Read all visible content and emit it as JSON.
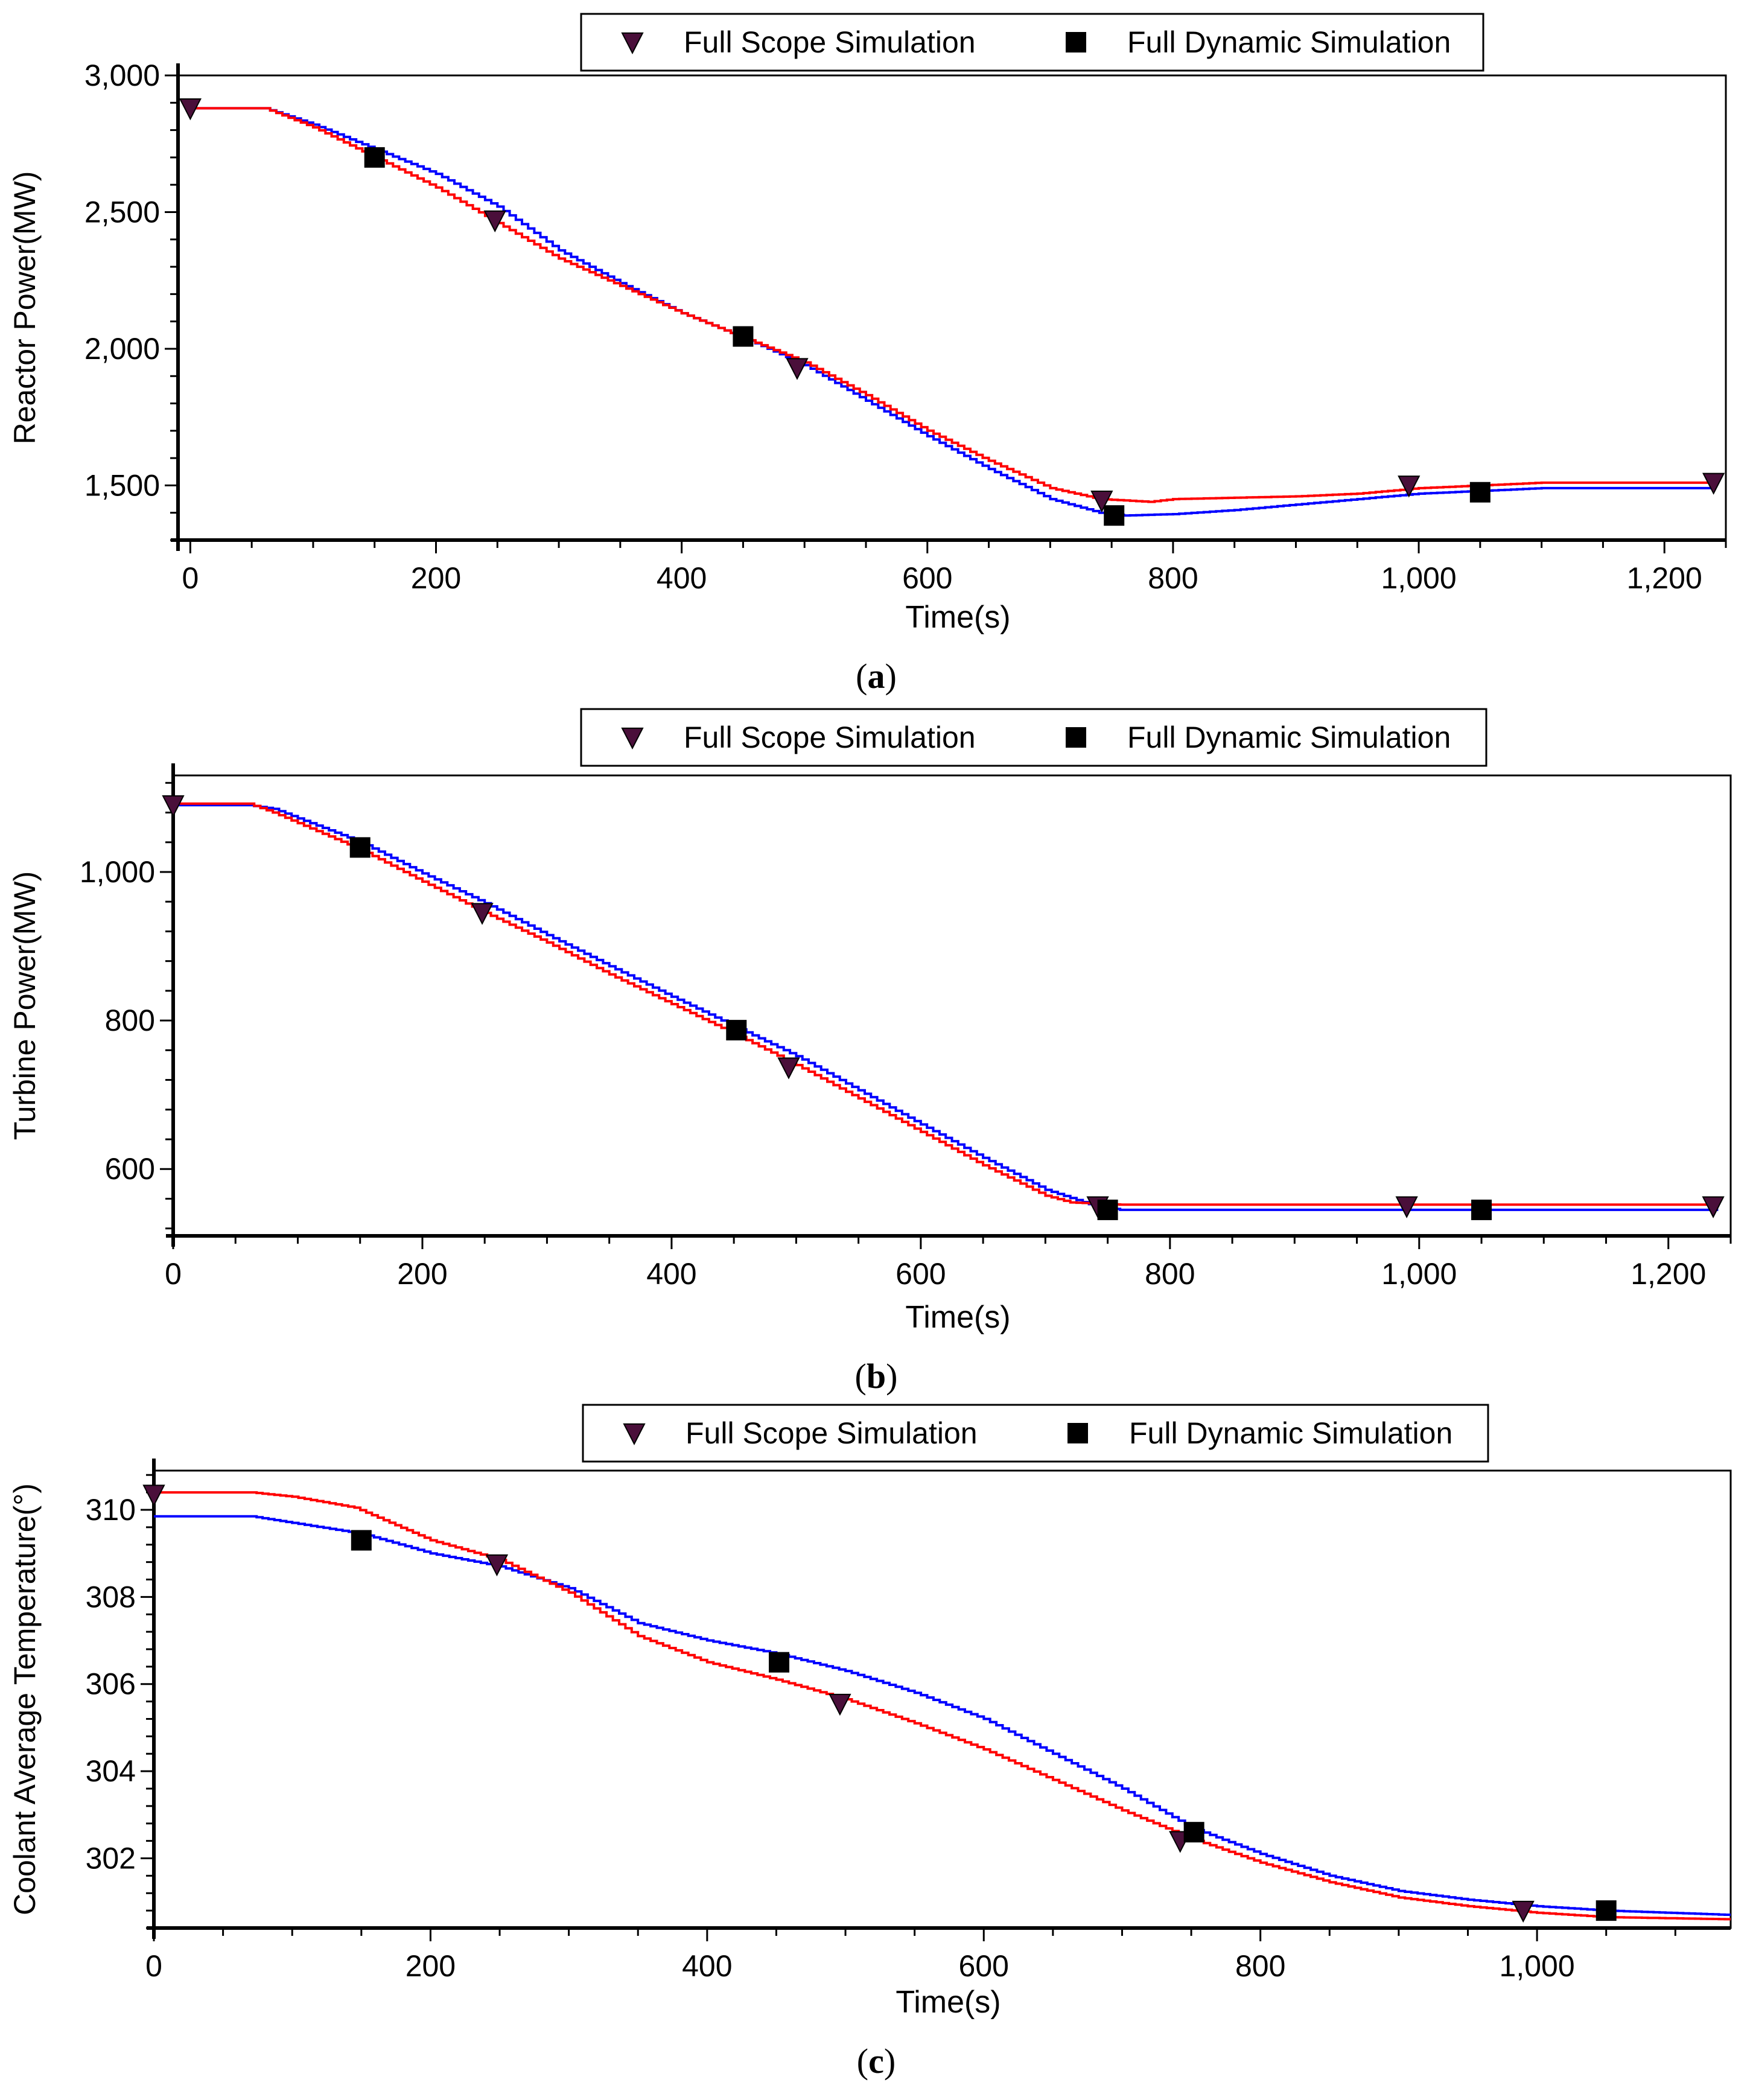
{
  "colors": {
    "full_scope": "#0000ff",
    "full_dynamic": "#ff0000",
    "marker": "#4a0f3a",
    "marker_square": "#000000"
  },
  "legend": {
    "full_scope": "Full Scope Simulation",
    "full_dynamic": "Full Dynamic Simulation"
  },
  "chart_data": [
    {
      "type": "line",
      "caption_letter": "a",
      "xlabel": "Time(s)",
      "ylabel": "Reactor Power(MW)",
      "xlim": [
        -10,
        1250
      ],
      "ylim": [
        1300,
        3000
      ],
      "x_ticks": [
        0,
        200,
        400,
        600,
        800,
        1000,
        1200
      ],
      "x_tick_labels": [
        "0",
        "200",
        "400",
        "600",
        "800",
        "1,000",
        "1,200"
      ],
      "y_ticks": [
        1500,
        2000,
        2500,
        3000
      ],
      "y_tick_labels": [
        "1,500",
        "2,000",
        "2,500",
        "3,000"
      ],
      "series": [
        {
          "name": "Full Scope Simulation",
          "color_key": "full_scope",
          "x": [
            0,
            60,
            100,
            150,
            200,
            250,
            300,
            350,
            400,
            450,
            500,
            550,
            600,
            650,
            700,
            740,
            760,
            800,
            850,
            900,
            1000,
            1100,
            1200,
            1240
          ],
          "y": [
            2880,
            2880,
            2820,
            2730,
            2640,
            2520,
            2360,
            2240,
            2130,
            2040,
            1940,
            1810,
            1680,
            1560,
            1450,
            1400,
            1390,
            1395,
            1410,
            1430,
            1470,
            1490,
            1490,
            1490
          ]
        },
        {
          "name": "Full Dynamic Simulation",
          "color_key": "full_dynamic",
          "x": [
            0,
            60,
            100,
            150,
            200,
            250,
            300,
            350,
            400,
            450,
            500,
            550,
            600,
            650,
            700,
            740,
            780,
            800,
            900,
            950,
            1000,
            1050,
            1100,
            1200,
            1240
          ],
          "y": [
            2880,
            2880,
            2810,
            2700,
            2590,
            2460,
            2330,
            2230,
            2130,
            2040,
            1950,
            1830,
            1700,
            1590,
            1490,
            1450,
            1440,
            1450,
            1460,
            1470,
            1490,
            1500,
            1510,
            1510,
            1510
          ]
        }
      ],
      "markers": {
        "full_scope": [
          [
            0,
            2880
          ],
          [
            248,
            2470
          ],
          [
            494,
            1930
          ],
          [
            742,
            1445
          ],
          [
            992,
            1500
          ],
          [
            1240,
            1510
          ]
        ],
        "full_dynamic": [
          [
            150,
            2700
          ],
          [
            450,
            2045
          ],
          [
            752,
            1390
          ],
          [
            1050,
            1475
          ]
        ]
      }
    },
    {
      "type": "line",
      "caption_letter": "b",
      "xlabel": "Time(s)",
      "ylabel": "Turbine Power(MW)",
      "xlim": [
        0,
        1250
      ],
      "ylim": [
        510,
        1130
      ],
      "x_ticks": [
        0,
        200,
        400,
        600,
        800,
        1000,
        1200
      ],
      "x_tick_labels": [
        "0",
        "200",
        "400",
        "600",
        "800",
        "1,000",
        "1,200"
      ],
      "y_ticks": [
        600,
        800,
        1000
      ],
      "y_tick_labels": [
        "600",
        "800",
        "1,000"
      ],
      "series": [
        {
          "name": "Full Scope Simulation",
          "color_key": "full_scope",
          "x": [
            0,
            60,
            80,
            150,
            200,
            250,
            300,
            350,
            400,
            450,
            500,
            550,
            600,
            650,
            700,
            740,
            760,
            800,
            1000,
            1240
          ],
          "y": [
            1090,
            1090,
            1085,
            1040,
            998,
            958,
            915,
            873,
            832,
            792,
            752,
            706,
            660,
            615,
            572,
            550,
            545,
            545,
            545,
            545
          ]
        },
        {
          "name": "Full Dynamic Simulation",
          "color_key": "full_dynamic",
          "x": [
            0,
            60,
            80,
            150,
            200,
            250,
            300,
            350,
            400,
            450,
            500,
            550,
            600,
            650,
            700,
            720,
            760,
            800,
            1000,
            1240
          ],
          "y": [
            1092,
            1092,
            1080,
            1030,
            987,
            945,
            905,
            862,
            822,
            782,
            740,
            695,
            650,
            605,
            564,
            555,
            552,
            552,
            552,
            552
          ]
        }
      ],
      "markers": {
        "full_scope": [
          [
            0,
            1090
          ],
          [
            248,
            945
          ],
          [
            494,
            737
          ],
          [
            742,
            550
          ],
          [
            990,
            550
          ],
          [
            1236,
            550
          ]
        ],
        "full_dynamic": [
          [
            150,
            1033
          ],
          [
            452,
            787
          ],
          [
            750,
            545
          ],
          [
            1050,
            545
          ]
        ]
      }
    },
    {
      "type": "line",
      "caption_letter": "c",
      "xlabel": "Time(s)",
      "ylabel": "Coolant Average Temperature(°)",
      "xlim": [
        0,
        1140
      ],
      "ylim": [
        300.4,
        310.9
      ],
      "x_ticks": [
        0,
        200,
        400,
        600,
        800,
        1000
      ],
      "x_tick_labels": [
        "0",
        "200",
        "400",
        "600",
        "800",
        "1,000"
      ],
      "y_ticks": [
        302,
        304,
        306,
        308,
        310
      ],
      "y_tick_labels": [
        "302",
        "304",
        "306",
        "308",
        "310"
      ],
      "series": [
        {
          "name": "Full Scope Simulation",
          "color_key": "full_scope",
          "x": [
            0,
            70,
            100,
            150,
            200,
            250,
            300,
            350,
            400,
            450,
            500,
            550,
            600,
            650,
            700,
            750,
            800,
            850,
            900,
            950,
            1000,
            1050,
            1140
          ],
          "y": [
            309.85,
            309.85,
            309.7,
            309.45,
            309.0,
            308.7,
            308.2,
            307.4,
            307.0,
            306.7,
            306.3,
            305.8,
            305.2,
            304.4,
            303.6,
            302.7,
            302.1,
            301.6,
            301.25,
            301.05,
            300.9,
            300.8,
            300.7
          ]
        },
        {
          "name": "Full Dynamic Simulation",
          "color_key": "full_dynamic",
          "x": [
            0,
            70,
            100,
            145,
            200,
            250,
            300,
            350,
            400,
            450,
            500,
            550,
            600,
            650,
            700,
            750,
            800,
            850,
            900,
            950,
            1000,
            1050,
            1140
          ],
          "y": [
            310.4,
            310.4,
            310.3,
            310.05,
            309.3,
            308.85,
            308.1,
            307.1,
            306.5,
            306.1,
            305.65,
            305.1,
            304.5,
            303.8,
            303.1,
            302.45,
            301.9,
            301.45,
            301.1,
            300.9,
            300.75,
            300.65,
            300.6
          ]
        }
      ],
      "markers": {
        "full_scope": [
          [
            0,
            310.35
          ],
          [
            248,
            308.75
          ],
          [
            496,
            305.55
          ],
          [
            742,
            302.4
          ],
          [
            990,
            300.8
          ]
        ],
        "full_dynamic": [
          [
            150,
            309.3
          ],
          [
            452,
            306.5
          ],
          [
            752,
            302.6
          ],
          [
            1050,
            300.8
          ]
        ]
      }
    }
  ]
}
